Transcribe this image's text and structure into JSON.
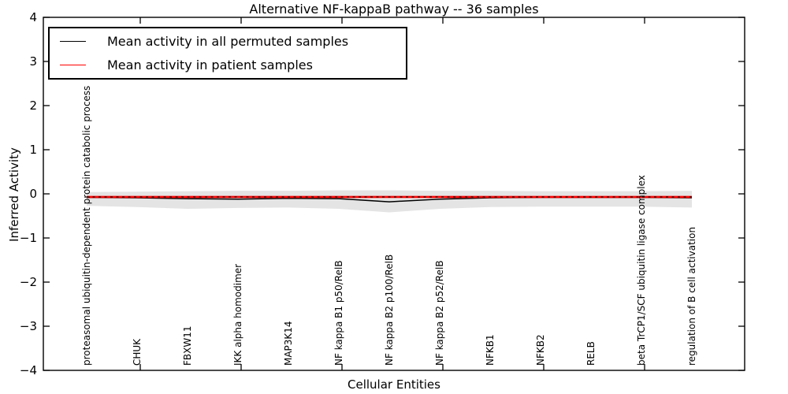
{
  "chart_data": {
    "type": "line",
    "title": "Alternative NF-kappaB pathway -- 36 samples",
    "xlabel": "Cellular Entities",
    "ylabel": "Inferred Activity",
    "ylim": [
      -4,
      4
    ],
    "ytick_labels": [
      "4",
      "3",
      "2",
      "1",
      "0",
      "−1",
      "−2",
      "−3",
      "−4"
    ],
    "ytick_values": [
      4,
      3,
      2,
      1,
      0,
      -1,
      -2,
      -3,
      -4
    ],
    "grid": false,
    "legend_position": "upper-left",
    "categories": [
      "proteasomal ubiquitin-dependent protein catabolic process",
      "CHUK",
      "FBXW11",
      "IKK alpha homodimer",
      "MAP3K14",
      "NF kappa B1 p50/RelB",
      "NF kappa B2 p100/RelB",
      "NF kappa B2 p52/RelB",
      "NFKB1",
      "NFKB2",
      "RELB",
      "beta TrCP1/SCF ubiquitin ligase complex",
      "regulation of B cell activation"
    ],
    "series": [
      {
        "name": "Mean activity in all permuted samples",
        "color": "#000000",
        "style": "solid",
        "values": [
          -0.08,
          -0.09,
          -0.11,
          -0.12,
          -0.1,
          -0.11,
          -0.18,
          -0.12,
          -0.09,
          -0.08,
          -0.08,
          -0.08,
          -0.09
        ]
      },
      {
        "name": "Mean activity in patient samples",
        "color": "#ff0000",
        "style": "solid-with-black-dash-overlay",
        "values": [
          -0.07,
          -0.07,
          -0.07,
          -0.07,
          -0.07,
          -0.07,
          -0.07,
          -0.07,
          -0.07,
          -0.07,
          -0.07,
          -0.07,
          -0.07
        ]
      }
    ],
    "band": {
      "name": "permuted-samples-spread-band",
      "color": "#e4e4e4",
      "upper": [
        0.04,
        0.05,
        0.06,
        0.07,
        0.07,
        0.08,
        0.08,
        0.07,
        0.07,
        0.06,
        0.06,
        0.06,
        0.07
      ],
      "lower": [
        -0.27,
        -0.3,
        -0.34,
        -0.32,
        -0.31,
        -0.34,
        -0.42,
        -0.34,
        -0.3,
        -0.29,
        -0.29,
        -0.29,
        -0.31
      ]
    }
  },
  "legend": {
    "items": [
      {
        "label": "Mean activity in all permuted samples",
        "color": "#000000"
      },
      {
        "label": "Mean activity in patient samples",
        "color": "#ff0000"
      }
    ]
  }
}
